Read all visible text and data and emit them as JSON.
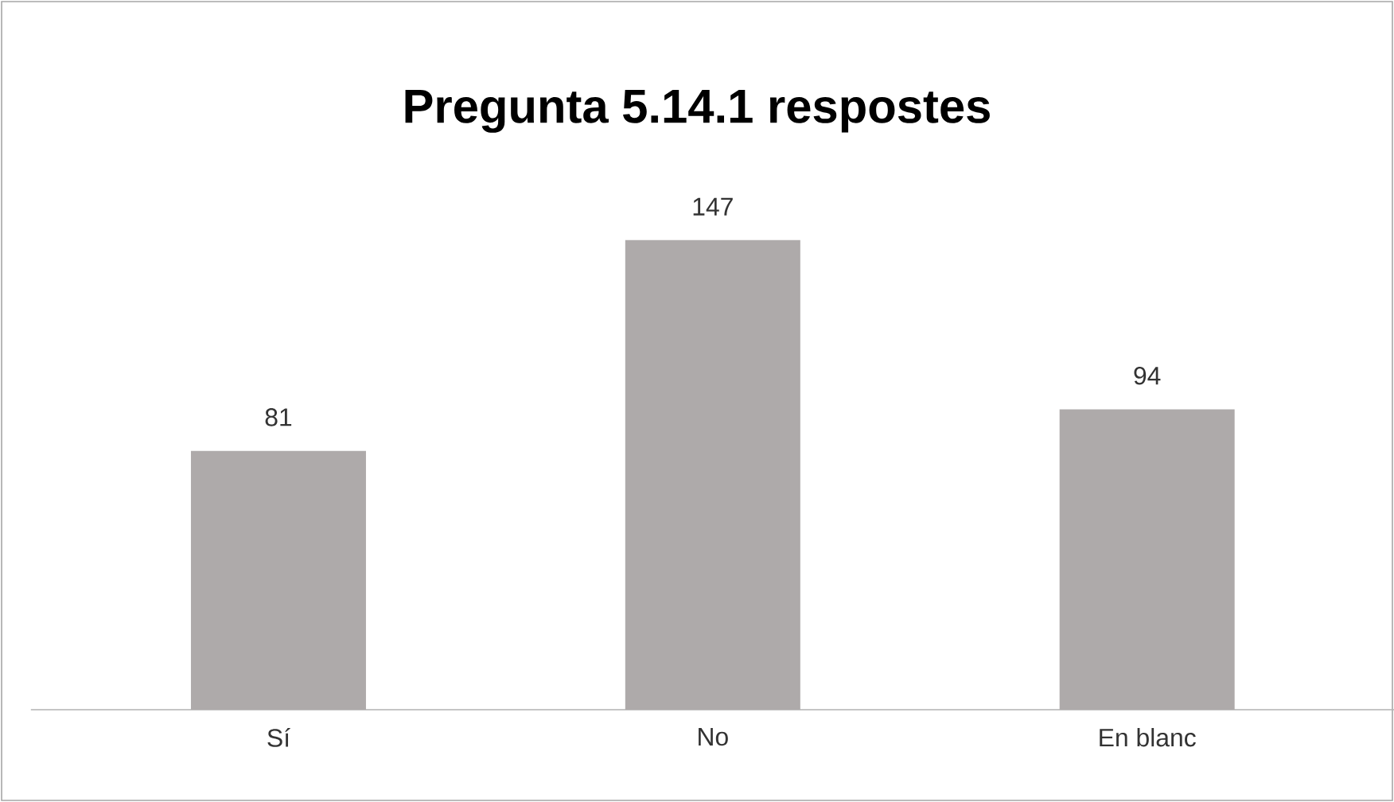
{
  "chart_data": {
    "type": "bar",
    "title": "Pregunta 5.14.1 respostes",
    "categories": [
      "Sí",
      "No",
      "En blanc"
    ],
    "values": [
      81,
      147,
      94
    ],
    "color": "#aeaaaa",
    "data_labels": true
  }
}
